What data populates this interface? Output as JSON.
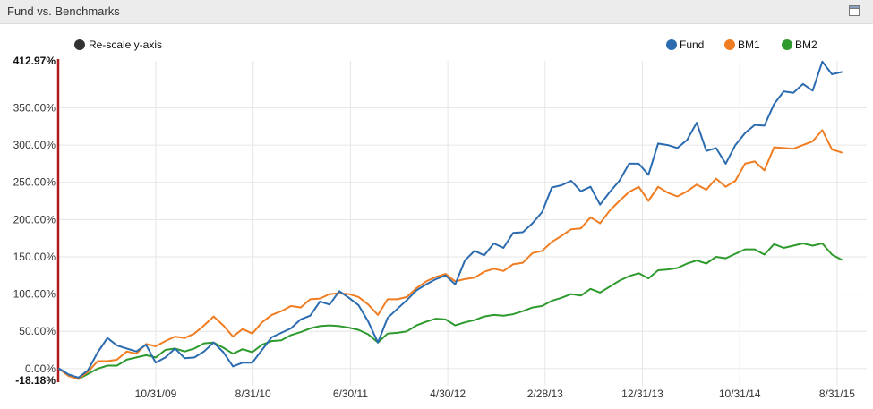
{
  "panel": {
    "title": "Fund vs. Benchmarks",
    "maximize_icon": "window-maximize-icon"
  },
  "controls": {
    "rescale_label": "Re-scale y-axis"
  },
  "colors": {
    "Fund": "#2b6cb0",
    "BM1": "#f07d22",
    "BM2": "#2e9a2e",
    "axis_marker": "#b11b1b",
    "grid": "#e6e6e6"
  },
  "chart_data": {
    "type": "line",
    "title": "",
    "xlabel": "",
    "ylabel": "",
    "y_unit": "%",
    "ylim": [
      -18.18,
      412.97
    ],
    "y_ticks": [
      0,
      50,
      100,
      150,
      200,
      250,
      300,
      350
    ],
    "y_top_label": "412.97%",
    "y_bottom_label": "-18.18%",
    "x_tick_labels": [
      "10/31/09",
      "8/31/10",
      "6/30/11",
      "4/30/12",
      "2/28/13",
      "12/31/13",
      "10/31/14",
      "8/31/15"
    ],
    "grid": true,
    "legend_position": "top-right",
    "series": [
      {
        "name": "Fund",
        "values": [
          0,
          -8,
          -12,
          -2,
          22,
          41,
          31,
          27,
          23,
          32,
          8,
          15,
          27,
          14,
          15,
          23,
          35,
          22,
          3,
          8,
          8,
          25,
          42,
          48,
          54,
          66,
          71,
          90,
          86,
          104,
          95,
          85,
          63,
          35,
          68,
          80,
          92,
          105,
          113,
          120,
          125,
          113,
          145,
          158,
          152,
          168,
          162,
          182,
          183,
          195,
          210,
          243,
          246,
          252,
          238,
          244,
          220,
          237,
          252,
          275,
          275,
          260,
          302,
          300,
          296,
          307,
          330,
          292,
          296,
          275,
          300,
          316,
          327,
          326,
          355,
          372,
          370,
          382,
          373,
          412,
          395,
          398
        ]
      },
      {
        "name": "BM1",
        "values": [
          0,
          -10,
          -14,
          -4,
          10,
          10,
          12,
          23,
          20,
          33,
          30,
          37,
          43,
          41,
          47,
          58,
          70,
          58,
          43,
          53,
          47,
          62,
          72,
          77,
          84,
          82,
          93,
          94,
          100,
          101,
          100,
          96,
          86,
          72,
          93,
          93,
          96,
          108,
          117,
          123,
          127,
          117,
          120,
          122,
          130,
          134,
          131,
          140,
          142,
          155,
          158,
          170,
          178,
          187,
          188,
          203,
          195,
          212,
          225,
          237,
          244,
          225,
          244,
          236,
          231,
          238,
          247,
          240,
          255,
          244,
          252,
          275,
          278,
          266,
          297,
          296,
          295,
          300,
          305,
          320,
          294,
          290
        ]
      },
      {
        "name": "BM2",
        "values": [
          0,
          -9,
          -14,
          -7,
          0,
          4,
          4,
          12,
          15,
          18,
          15,
          25,
          27,
          23,
          27,
          34,
          35,
          28,
          20,
          26,
          22,
          32,
          37,
          38,
          45,
          49,
          54,
          57,
          58,
          57,
          55,
          52,
          46,
          35,
          47,
          48,
          50,
          58,
          63,
          67,
          66,
          58,
          62,
          65,
          70,
          72,
          71,
          73,
          77,
          82,
          84,
          91,
          95,
          100,
          98,
          107,
          102,
          110,
          118,
          124,
          128,
          121,
          132,
          133,
          135,
          141,
          145,
          141,
          150,
          148,
          154,
          160,
          160,
          153,
          167,
          162,
          165,
          168,
          165,
          168,
          153,
          146
        ]
      }
    ]
  }
}
